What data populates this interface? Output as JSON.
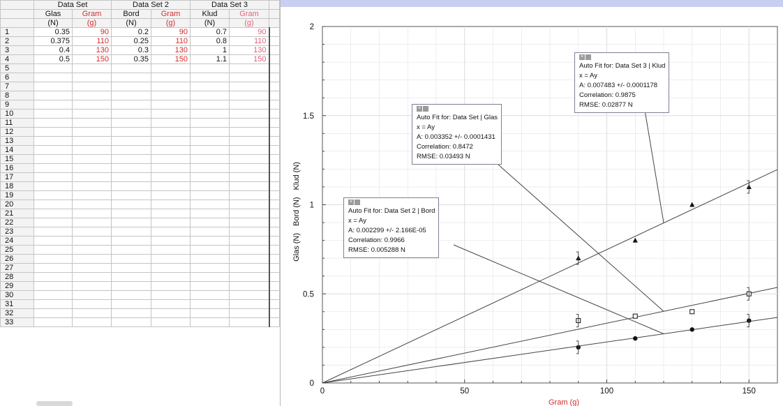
{
  "table": {
    "sets": [
      "Data Set",
      "Data Set 2",
      "Data Set 3"
    ],
    "columns": [
      {
        "name": "Glas",
        "unit": "(N)"
      },
      {
        "name": "Gram",
        "unit": "(g)"
      },
      {
        "name": "Bord",
        "unit": "(N)"
      },
      {
        "name": "Gram",
        "unit": "(g)"
      },
      {
        "name": "Klud",
        "unit": "(N)"
      },
      {
        "name": "Gram",
        "unit": "(g)"
      }
    ],
    "rows": [
      [
        "0.35",
        "90",
        "0.2",
        "90",
        "0.7",
        "90"
      ],
      [
        "0.375",
        "110",
        "0.25",
        "110",
        "0.8",
        "110"
      ],
      [
        "0.4",
        "130",
        "0.3",
        "130",
        "1",
        "130"
      ],
      [
        "0.5",
        "150",
        "0.35",
        "150",
        "1.1",
        "150"
      ]
    ],
    "row_numbers": [
      "1",
      "2",
      "3",
      "4",
      "5",
      "6",
      "7",
      "8",
      "9",
      "10",
      "11",
      "12",
      "13",
      "14",
      "15",
      "16",
      "17",
      "18",
      "19",
      "20",
      "21",
      "22",
      "23",
      "24",
      "25",
      "26",
      "27",
      "28",
      "29",
      "30",
      "31",
      "32",
      "33"
    ]
  },
  "chart_data": {
    "type": "scatter",
    "xlabel": "Gram (g)",
    "ylabel_parts": [
      "Glas (N)",
      "Bord (N)",
      "Klud (N)"
    ],
    "xlim": [
      0,
      160
    ],
    "ylim": [
      0,
      2
    ],
    "x_ticks": [
      "0",
      "50",
      "100",
      "150"
    ],
    "y_ticks": [
      "0",
      "0.5",
      "1",
      "1.5",
      "2"
    ],
    "grid": true,
    "series": [
      {
        "name": "Glas",
        "marker": "open-square",
        "x": [
          90,
          110,
          130,
          150
        ],
        "y": [
          0.35,
          0.375,
          0.4,
          0.5
        ],
        "fit_A": 0.003352
      },
      {
        "name": "Bord",
        "marker": "filled-circle",
        "x": [
          90,
          110,
          130,
          150
        ],
        "y": [
          0.2,
          0.25,
          0.3,
          0.35
        ],
        "fit_A": 0.002299
      },
      {
        "name": "Klud",
        "marker": "filled-triangle",
        "x": [
          90,
          110,
          130,
          150
        ],
        "y": [
          0.7,
          0.8,
          1,
          1.1
        ],
        "fit_A": 0.007483
      }
    ],
    "annotations": [
      {
        "series": "Klud",
        "lines": [
          "Auto Fit for: Data Set 3 | Klud",
          "x = Ay",
          "A: 0.007483 +/- 0.0001178",
          "Correlation: 0.9875",
          "RMSE: 0.02877 N"
        ]
      },
      {
        "series": "Glas",
        "lines": [
          "Auto Fit for: Data Set | Glas",
          "x = Ay",
          "A: 0.003352 +/- 0.0001431",
          "Correlation: 0.8472",
          "RMSE: 0.03493 N"
        ]
      },
      {
        "series": "Bord",
        "lines": [
          "Auto Fit for: Data Set 2 | Bord",
          "x = Ay",
          "A: 0.002299 +/- 2.166E-05",
          "Correlation: 0.9966",
          "RMSE: 0.005288 N"
        ]
      }
    ],
    "colors": {
      "xlabel": "#d62a2a",
      "marks": "#111111",
      "grid": "#dcdcdc"
    }
  }
}
